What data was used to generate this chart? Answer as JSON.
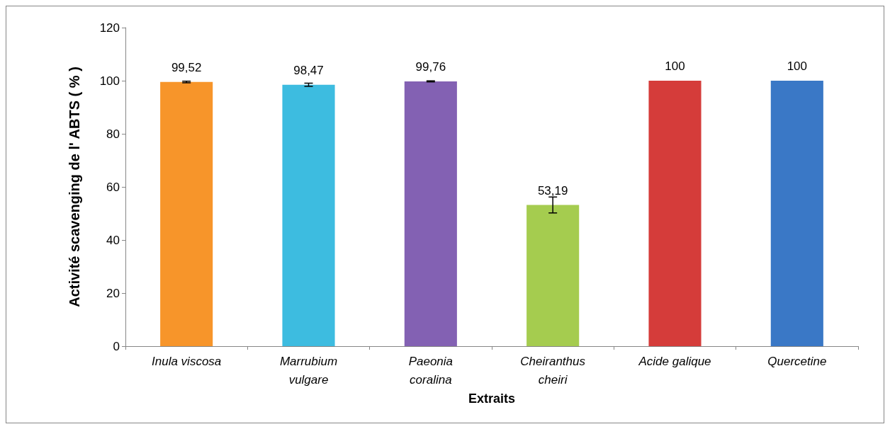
{
  "chart_data": {
    "type": "bar",
    "xlabel": "Extraits",
    "ylabel": "Activité scavenging de l' ABTS ( % )",
    "categories": [
      "Inula viscosa",
      "Marrubium vulgare",
      "Paeonia coralina",
      "Cheiranthus cheiri",
      "Acide galique",
      "Quercetine"
    ],
    "values": [
      99.52,
      98.47,
      99.76,
      53.19,
      100,
      100
    ],
    "colors": [
      "#f7952a",
      "#3dbce0",
      "#8361b3",
      "#a5cc4f",
      "#d53c3a",
      "#3a78c6"
    ],
    "errors": [
      0.3,
      0.6,
      0.2,
      3,
      null,
      null
    ],
    "value_labels": [
      "99,52",
      "98,47",
      "99,76",
      "53,19",
      "100",
      "100"
    ],
    "ylim": [
      0,
      120
    ],
    "yticks": [
      0,
      20,
      40,
      60,
      80,
      100,
      120
    ],
    "grid": false
  }
}
